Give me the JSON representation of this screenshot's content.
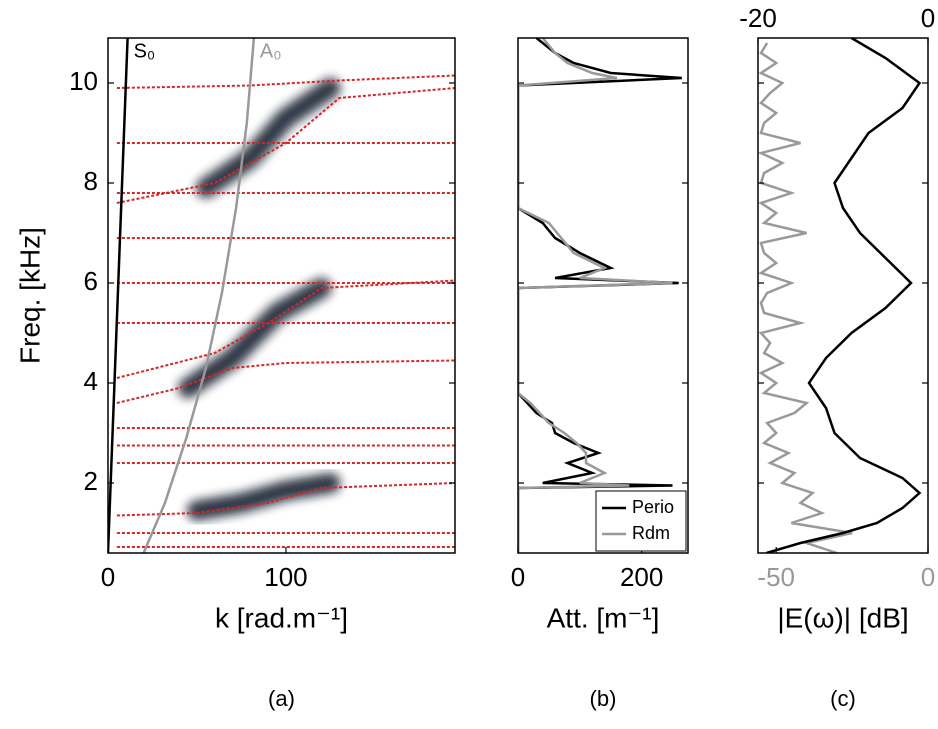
{
  "chart_data": [
    {
      "type": "line",
      "panel": "(a)",
      "xlabel": "k [rad.m⁻¹]",
      "ylabel": "Freq. [kHz]",
      "xlim": [
        0,
        195
      ],
      "xticks": [
        0,
        100
      ],
      "ylim": [
        0.6,
        10.9
      ],
      "yticks": [
        2,
        4,
        6,
        8,
        10
      ],
      "series": [
        {
          "name": "S₀",
          "color": "#000000",
          "x": [
            0,
            11
          ],
          "values": [
            0.6,
            10.9
          ]
        },
        {
          "name": "A₀",
          "color": "#999999",
          "x": [
            20,
            32,
            44,
            55,
            64,
            72,
            78,
            82
          ],
          "values": [
            0.6,
            1.6,
            2.9,
            4.3,
            5.8,
            7.5,
            9.2,
            10.9
          ]
        }
      ],
      "branch_color": "#d62728",
      "branches": [
        {
          "x": [
            5,
            195
          ],
          "values": [
            0.72,
            0.72
          ]
        },
        {
          "x": [
            5,
            195
          ],
          "values": [
            1.0,
            1.0
          ]
        },
        {
          "x": [
            5,
            50,
            90,
            120,
            195
          ],
          "values": [
            1.35,
            1.4,
            1.6,
            1.9,
            2.0
          ]
        },
        {
          "x": [
            5,
            195
          ],
          "values": [
            2.4,
            2.4
          ]
        },
        {
          "x": [
            5,
            195
          ],
          "values": [
            2.75,
            2.75
          ]
        },
        {
          "x": [
            5,
            195
          ],
          "values": [
            3.1,
            3.1
          ]
        },
        {
          "x": [
            5,
            40,
            70,
            100,
            195
          ],
          "values": [
            3.6,
            3.9,
            4.3,
            4.4,
            4.45
          ]
        },
        {
          "x": [
            5,
            60,
            90,
            120,
            195
          ],
          "values": [
            4.1,
            4.6,
            5.2,
            5.9,
            6.05
          ]
        },
        {
          "x": [
            5,
            195
          ],
          "values": [
            5.2,
            5.2
          ]
        },
        {
          "x": [
            5,
            195
          ],
          "values": [
            6.0,
            6.0
          ]
        },
        {
          "x": [
            5,
            195
          ],
          "values": [
            6.9,
            6.9
          ]
        },
        {
          "x": [
            5,
            60,
            100,
            130,
            195
          ],
          "values": [
            7.6,
            8.0,
            8.8,
            9.7,
            9.9
          ]
        },
        {
          "x": [
            5,
            195
          ],
          "values": [
            7.8,
            7.8
          ]
        },
        {
          "x": [
            5,
            195
          ],
          "values": [
            8.8,
            8.8
          ]
        },
        {
          "x": [
            5,
            80,
            130,
            195
          ],
          "values": [
            9.9,
            9.95,
            10.05,
            10.15
          ]
        }
      ],
      "density_color": "#0d1326",
      "density": [
        {
          "x": [
            50,
            75,
            100,
            125
          ],
          "values": [
            1.45,
            1.6,
            1.85,
            2.0
          ]
        },
        {
          "x": [
            45,
            70,
            95,
            120
          ],
          "values": [
            3.9,
            4.5,
            5.4,
            5.9
          ]
        },
        {
          "x": [
            55,
            80,
            100,
            125
          ],
          "values": [
            7.9,
            8.5,
            9.3,
            9.9
          ]
        },
        {
          "x": [
            5,
            30
          ],
          "values": [
            7.5,
            7.5
          ]
        }
      ]
    },
    {
      "type": "line",
      "orientation": "horizontal",
      "panel": "(b)",
      "xlabel": "Att. [m⁻¹]",
      "xlim": [
        0,
        275
      ],
      "xticks": [
        0,
        200
      ],
      "ylim": [
        0.6,
        10.9
      ],
      "yticks": [
        2,
        4,
        6,
        8,
        10
      ],
      "ytick_labels": false,
      "legend": "lower right",
      "y": [
        0.6,
        1.9,
        1.95,
        2.0,
        2.2,
        2.4,
        2.6,
        2.8,
        3.0,
        3.2,
        3.4,
        3.6,
        3.8,
        5.9,
        6.0,
        6.1,
        6.3,
        6.6,
        6.9,
        7.2,
        7.5,
        9.95,
        10.1,
        10.2,
        10.4,
        10.6,
        10.9
      ],
      "series": [
        {
          "name": "Perio",
          "color": "#000000",
          "values": [
            0,
            0,
            250,
            40,
            120,
            80,
            130,
            90,
            60,
            55,
            30,
            15,
            0,
            0,
            260,
            60,
            150,
            100,
            60,
            40,
            0,
            0,
            265,
            150,
            90,
            60,
            30
          ]
        },
        {
          "name": "Rdm",
          "color": "#999999",
          "values": [
            0,
            0,
            180,
            100,
            140,
            110,
            110,
            95,
            75,
            50,
            35,
            20,
            0,
            0,
            250,
            100,
            140,
            90,
            70,
            50,
            0,
            0,
            160,
            120,
            80,
            60,
            40
          ]
        }
      ]
    },
    {
      "type": "line",
      "orientation": "horizontal",
      "panel": "(c)",
      "xlabel": "|E(ω)| [dB]",
      "xlim": [
        -56,
        0
      ],
      "xticks": [
        -50,
        0
      ],
      "xtick_color": "#999999",
      "x2lim": [
        -20,
        0
      ],
      "x2ticks": [
        -20,
        0
      ],
      "x2tick_color": "#000000",
      "ylim": [
        0.6,
        10.9
      ],
      "yticks": [
        2,
        4,
        6,
        8,
        10
      ],
      "ytick_labels": false,
      "series": [
        {
          "color": "#999999",
          "y": [
            0.6,
            0.8,
            1.0,
            1.2,
            1.4,
            1.6,
            1.8,
            2.0,
            2.2,
            2.4,
            2.6,
            2.8,
            3.0,
            3.2,
            3.4,
            3.6,
            3.8,
            4.0,
            4.2,
            4.4,
            4.6,
            4.8,
            5.0,
            5.2,
            5.4,
            5.6,
            5.8,
            6.0,
            6.2,
            6.4,
            6.6,
            6.8,
            7.0,
            7.2,
            7.4,
            7.6,
            7.8,
            8.0,
            8.2,
            8.4,
            8.6,
            8.8,
            9.0,
            9.2,
            9.4,
            9.6,
            9.8,
            10.0,
            10.2,
            10.4,
            10.6,
            10.8
          ],
          "values": [
            -30,
            -40,
            -25,
            -45,
            -35,
            -42,
            -38,
            -48,
            -44,
            -52,
            -46,
            -54,
            -50,
            -53,
            -44,
            -40,
            -54,
            -50,
            -55,
            -48,
            -54,
            -52,
            -55,
            -42,
            -54,
            -55,
            -53,
            -45,
            -55,
            -50,
            -54,
            -55,
            -40,
            -54,
            -50,
            -55,
            -45,
            -55,
            -54,
            -48,
            -55,
            -42,
            -55,
            -54,
            -50,
            -55,
            -52,
            -48,
            -55,
            -50,
            -55,
            -53
          ]
        },
        {
          "color": "#000000",
          "axis": "x2",
          "y": [
            0.6,
            0.8,
            1.0,
            1.2,
            1.5,
            1.8,
            2.1,
            2.5,
            3.0,
            3.5,
            4.0,
            4.5,
            5.0,
            5.5,
            6.0,
            6.5,
            7.0,
            7.5,
            8.0,
            8.5,
            9.0,
            9.5,
            10.0,
            10.5,
            10.9
          ],
          "values": [
            -19,
            -15,
            -10,
            -6,
            -3,
            -1,
            -3,
            -8,
            -11,
            -12,
            -14,
            -12,
            -9,
            -5,
            -2,
            -5,
            -8,
            -10,
            -11,
            -9,
            -7,
            -3,
            -1,
            -5,
            -9
          ]
        }
      ]
    }
  ]
}
